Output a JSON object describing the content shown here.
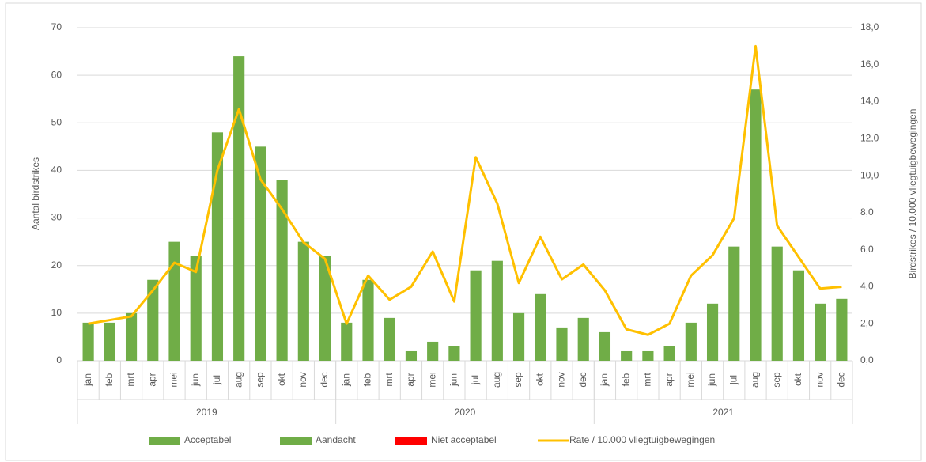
{
  "chart_data": {
    "type": "bar-line",
    "y_label": "Aantal birdstrikes",
    "y2_label": "Birdstrikes / 10.000 vliegtuigbewegingen",
    "categories": [
      "jan",
      "feb",
      "mrt",
      "apr",
      "mei",
      "jun",
      "jul",
      "aug",
      "sep",
      "okt",
      "nov",
      "dec",
      "jan",
      "feb",
      "mrt",
      "apr",
      "mei",
      "jun",
      "jul",
      "aug",
      "sep",
      "okt",
      "nov",
      "dec",
      "jan",
      "feb",
      "mrt",
      "apr",
      "mei",
      "jun",
      "jul",
      "aug",
      "sep",
      "okt",
      "nov",
      "dec"
    ],
    "groups": [
      "2019",
      "2020",
      "2021"
    ],
    "series": [
      {
        "name": "Acceptabel",
        "color": "#70ad47",
        "values": [
          8,
          8,
          10,
          17,
          25,
          22,
          48,
          64,
          45,
          38,
          25,
          22,
          8,
          17,
          9,
          2,
          4,
          3,
          19,
          21,
          10,
          14,
          7,
          9,
          6,
          2,
          2,
          3,
          8,
          12,
          24,
          57,
          24,
          19,
          12,
          13
        ]
      },
      {
        "name": "Aandacht",
        "color": "#70ad47",
        "values": [
          null,
          null,
          null,
          null,
          null,
          null,
          null,
          null,
          null,
          null,
          null,
          null,
          null,
          null,
          null,
          null,
          null,
          null,
          null,
          null,
          null,
          null,
          null,
          null,
          null,
          null,
          null,
          null,
          null,
          null,
          null,
          null,
          null,
          null,
          null,
          null
        ]
      },
      {
        "name": "Niet acceptabel",
        "color": "#ff0000",
        "values": [
          null,
          null,
          null,
          null,
          null,
          null,
          null,
          null,
          null,
          null,
          null,
          null,
          null,
          null,
          null,
          null,
          null,
          null,
          null,
          null,
          null,
          null,
          null,
          null,
          null,
          null,
          null,
          null,
          null,
          null,
          null,
          null,
          null,
          null,
          null,
          null
        ]
      },
      {
        "name": "Rate / 10.000 vliegtuigbewegingen",
        "color": "#ffc000",
        "axis": "y2",
        "line": true,
        "values": [
          2.0,
          2.2,
          2.4,
          3.8,
          5.3,
          4.8,
          10.3,
          13.6,
          9.8,
          8.2,
          6.4,
          5.5,
          2.0,
          4.6,
          3.3,
          4.0,
          5.9,
          3.2,
          11.0,
          8.5,
          4.2,
          6.7,
          4.4,
          5.2,
          3.8,
          1.7,
          1.4,
          2.0,
          4.6,
          5.7,
          7.7,
          17.0,
          7.3,
          5.6,
          3.9,
          4.0
        ]
      }
    ],
    "ylim": [
      0,
      70
    ],
    "yticks": [
      0,
      10,
      20,
      30,
      40,
      50,
      60,
      70
    ],
    "y2lim": [
      0,
      18
    ],
    "y2ticks": [
      {
        "value": 0,
        "label": "0,0"
      },
      {
        "value": 2,
        "label": "2,0"
      },
      {
        "value": 4,
        "label": "4,0"
      },
      {
        "value": 6,
        "label": "6,0"
      },
      {
        "value": 8,
        "label": "8,0"
      },
      {
        "value": 10,
        "label": "10,0"
      },
      {
        "value": 12,
        "label": "12,0"
      },
      {
        "value": 14,
        "label": "14,0"
      },
      {
        "value": 16,
        "label": "16,0"
      },
      {
        "value": 18,
        "label": "18,0"
      }
    ],
    "grid": true
  }
}
